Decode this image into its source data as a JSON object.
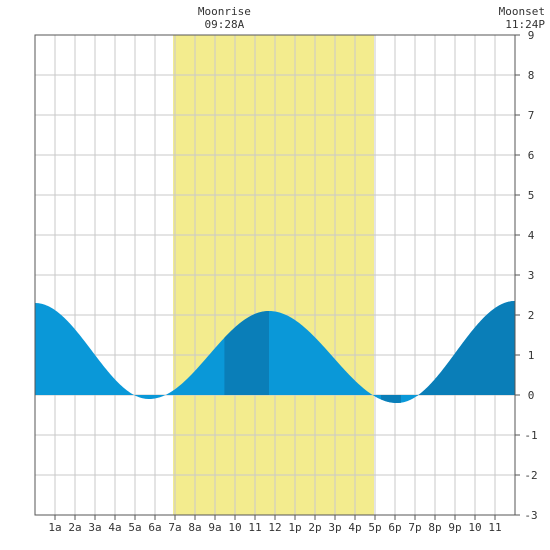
{
  "chart_data": {
    "type": "area",
    "header_labels": [
      {
        "name": "moonrise",
        "title": "Moonrise",
        "time": "09:28A",
        "hour": 9.47
      },
      {
        "name": "moonset",
        "title": "Moonset",
        "time": "11:24P",
        "hour": 23.4
      }
    ],
    "x_ticks": [
      {
        "hour": 1,
        "label": "1a"
      },
      {
        "hour": 2,
        "label": "2a"
      },
      {
        "hour": 3,
        "label": "3a"
      },
      {
        "hour": 4,
        "label": "4a"
      },
      {
        "hour": 5,
        "label": "5a"
      },
      {
        "hour": 6,
        "label": "6a"
      },
      {
        "hour": 7,
        "label": "7a"
      },
      {
        "hour": 8,
        "label": "8a"
      },
      {
        "hour": 9,
        "label": "9a"
      },
      {
        "hour": 10,
        "label": "10"
      },
      {
        "hour": 11,
        "label": "11"
      },
      {
        "hour": 12,
        "label": "12"
      },
      {
        "hour": 13,
        "label": "1p"
      },
      {
        "hour": 14,
        "label": "2p"
      },
      {
        "hour": 15,
        "label": "3p"
      },
      {
        "hour": 16,
        "label": "4p"
      },
      {
        "hour": 17,
        "label": "5p"
      },
      {
        "hour": 18,
        "label": "6p"
      },
      {
        "hour": 19,
        "label": "7p"
      },
      {
        "hour": 20,
        "label": "8p"
      },
      {
        "hour": 21,
        "label": "9p"
      },
      {
        "hour": 22,
        "label": "10"
      },
      {
        "hour": 23,
        "label": "11"
      }
    ],
    "xlim": [
      0,
      24
    ],
    "ylim": [
      -3,
      9
    ],
    "y_ticks": [
      -3,
      -2,
      -1,
      0,
      1,
      2,
      3,
      4,
      5,
      6,
      7,
      8,
      9
    ],
    "daylight_hours": [
      6.9,
      16.95
    ],
    "tide_extremes": [
      {
        "hour": 0.0,
        "value": 2.3
      },
      {
        "hour": 5.7,
        "value": -0.1
      },
      {
        "hour": 11.7,
        "value": 2.1
      },
      {
        "hour": 18.1,
        "value": -0.2
      },
      {
        "hour": 24.0,
        "value": 2.35
      }
    ],
    "moon_window_hours": [
      9.47,
      23.4
    ],
    "grid": true,
    "colors": {
      "tide": "#0a98d8",
      "tide_moon": "#0a7eb8",
      "daylight": "#f3ec8e",
      "grid": "#c9c9c9",
      "axis": "#555555"
    }
  }
}
